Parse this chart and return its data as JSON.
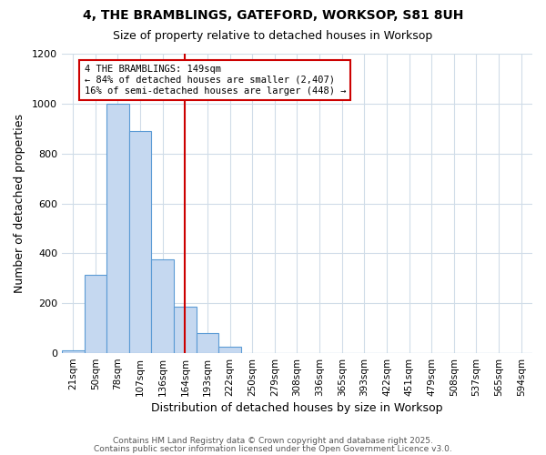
{
  "title1": "4, THE BRAMBLINGS, GATEFORD, WORKSOP, S81 8UH",
  "title2": "Size of property relative to detached houses in Worksop",
  "xlabel": "Distribution of detached houses by size in Worksop",
  "ylabel": "Number of detached properties",
  "bar_labels": [
    "21sqm",
    "50sqm",
    "78sqm",
    "107sqm",
    "136sqm",
    "164sqm",
    "193sqm",
    "222sqm",
    "250sqm",
    "279sqm",
    "308sqm",
    "336sqm",
    "365sqm",
    "393sqm",
    "422sqm",
    "451sqm",
    "479sqm",
    "508sqm",
    "537sqm",
    "565sqm",
    "594sqm"
  ],
  "bar_values": [
    10,
    315,
    1000,
    890,
    375,
    185,
    80,
    25,
    0,
    0,
    0,
    0,
    0,
    0,
    0,
    0,
    0,
    0,
    0,
    0,
    0
  ],
  "bar_color": "#c5d8f0",
  "bar_edge_color": "#5b9bd5",
  "marker_label": "4 THE BRAMBLINGS: 149sqm",
  "annotation_line1": "← 84% of detached houses are smaller (2,407)",
  "annotation_line2": "16% of semi-detached houses are larger (448) →",
  "annotation_box_color": "#ffffff",
  "annotation_box_edge": "#cc0000",
  "vline_color": "#cc0000",
  "ylim": [
    0,
    1200
  ],
  "yticks": [
    0,
    200,
    400,
    600,
    800,
    1000,
    1200
  ],
  "footer1": "Contains HM Land Registry data © Crown copyright and database right 2025.",
  "footer2": "Contains public sector information licensed under the Open Government Licence v3.0.",
  "bg_color": "#ffffff",
  "plot_bg_color": "#ffffff",
  "grid_color": "#d0dce8"
}
